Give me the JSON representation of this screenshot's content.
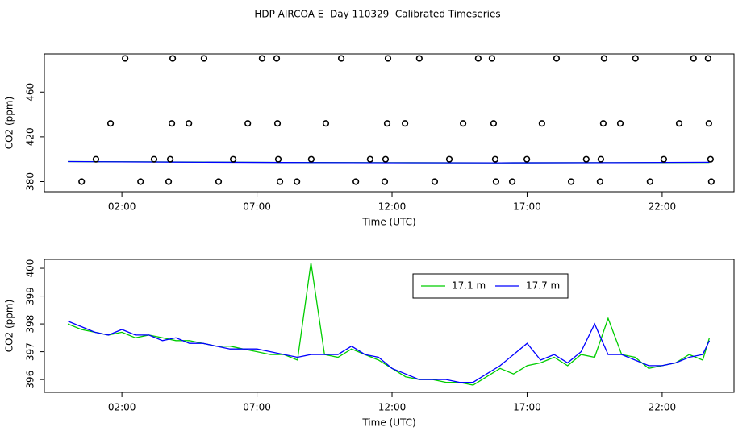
{
  "title": "HDP AIRCOA E  Day 110329  Calibrated Timeseries",
  "chart_data": [
    {
      "type": "scatter",
      "xlabel": "Time (UTC)",
      "ylabel": "CO2 (ppm)",
      "xlim": [
        -0.87,
        24.66
      ],
      "ylim": [
        371,
        494
      ],
      "xticks": [
        {
          "value": 2,
          "label": "02:00"
        },
        {
          "value": 7,
          "label": "07:00"
        },
        {
          "value": 12,
          "label": "12:00"
        },
        {
          "value": 17,
          "label": "17:00"
        },
        {
          "value": 22,
          "label": "22:00"
        }
      ],
      "yticks": [
        380,
        420,
        460
      ],
      "points": {
        "color": "#000000",
        "x": [
          2.12,
          3.88,
          5.04,
          7.19,
          7.73,
          10.12,
          11.85,
          13.01,
          15.19,
          15.7,
          18.09,
          19.85,
          21.01,
          23.16,
          23.7,
          1.58,
          3.85,
          4.48,
          6.66,
          7.76,
          9.55,
          11.82,
          12.48,
          14.63,
          15.76,
          17.55,
          19.82,
          20.45,
          22.63,
          23.73,
          1.04,
          3.19,
          3.79,
          6.12,
          7.79,
          9.01,
          11.19,
          11.76,
          14.12,
          15.82,
          16.99,
          19.19,
          19.73,
          22.06,
          23.79,
          0.51,
          2.69,
          3.73,
          5.58,
          7.85,
          8.48,
          10.66,
          11.73,
          13.58,
          15.85,
          16.45,
          18.63,
          19.7,
          21.55,
          23.82
        ],
        "y": [
          490,
          490,
          490,
          490,
          490,
          490,
          490,
          490,
          490,
          490,
          490,
          490,
          490,
          490,
          490,
          432,
          432,
          432,
          432,
          432,
          432,
          432,
          432,
          432,
          432,
          432,
          432,
          432,
          432,
          432,
          400,
          400,
          400,
          400,
          400,
          400,
          400,
          400,
          400,
          400,
          400,
          400,
          400,
          400,
          400,
          380,
          380,
          380,
          380,
          380,
          380,
          380,
          380,
          380,
          380,
          380,
          380,
          380,
          380,
          380
        ]
      },
      "x": [
        0,
        4,
        8,
        12,
        16,
        20,
        23.75
      ],
      "series": [
        {
          "color": "#00cd00",
          "values": [
            398.0,
            397.6,
            397.2,
            397.0,
            396.8,
            397.0,
            397.2
          ]
        },
        {
          "color": "#0000ff",
          "values": [
            398.0,
            397.5,
            397.1,
            396.9,
            396.8,
            397.0,
            397.3
          ]
        }
      ]
    },
    {
      "type": "line",
      "xlabel": "Time (UTC)",
      "ylabel": "CO2 (ppm)",
      "xlim": [
        -0.87,
        24.66
      ],
      "ylim": [
        395.54,
        400.32
      ],
      "xticks": [
        {
          "value": 2,
          "label": "02:00"
        },
        {
          "value": 7,
          "label": "07:00"
        },
        {
          "value": 12,
          "label": "12:00"
        },
        {
          "value": 17,
          "label": "17:00"
        },
        {
          "value": 22,
          "label": "22:00"
        }
      ],
      "yticks": [
        396,
        397,
        398,
        399,
        400
      ],
      "legend": "top",
      "x": [
        0,
        0.5,
        1,
        1.5,
        2,
        2.5,
        3,
        3.5,
        4,
        4.5,
        5,
        5.5,
        6,
        6.5,
        7,
        7.5,
        8,
        8.5,
        9,
        9.5,
        10,
        10.5,
        11,
        11.5,
        12,
        12.5,
        13,
        13.5,
        14,
        14.5,
        15,
        15.5,
        16,
        16.5,
        17,
        17.5,
        18,
        18.5,
        19,
        19.5,
        20,
        20.5,
        21,
        21.5,
        22,
        22.5,
        23,
        23.5,
        23.75
      ],
      "series": [
        {
          "name": "17.1 m",
          "color": "#00cd00",
          "values": [
            398.0,
            397.8,
            397.7,
            397.6,
            397.7,
            397.5,
            397.6,
            397.5,
            397.4,
            397.4,
            397.3,
            397.2,
            397.2,
            397.1,
            397.0,
            396.9,
            396.9,
            396.7,
            400.2,
            396.9,
            396.8,
            397.1,
            396.9,
            396.7,
            396.4,
            396.1,
            396.0,
            396.0,
            395.9,
            395.9,
            395.8,
            396.1,
            396.4,
            396.2,
            396.5,
            396.6,
            396.8,
            396.5,
            396.9,
            396.8,
            398.2,
            396.9,
            396.8,
            396.4,
            396.5,
            396.6,
            396.9,
            396.7,
            397.5
          ]
        },
        {
          "name": "17.7 m",
          "color": "#0000ff",
          "values": [
            398.1,
            397.9,
            397.7,
            397.6,
            397.8,
            397.6,
            397.6,
            397.4,
            397.5,
            397.3,
            397.3,
            397.2,
            397.1,
            397.1,
            397.1,
            397.0,
            396.9,
            396.8,
            396.9,
            396.9,
            396.9,
            397.2,
            396.9,
            396.8,
            396.4,
            396.2,
            396.0,
            396.0,
            396.0,
            395.9,
            395.9,
            396.2,
            396.5,
            396.9,
            397.3,
            396.7,
            396.9,
            396.6,
            397.0,
            398.0,
            396.9,
            396.9,
            396.7,
            396.5,
            396.5,
            396.6,
            396.8,
            396.9,
            397.4
          ]
        }
      ]
    }
  ]
}
